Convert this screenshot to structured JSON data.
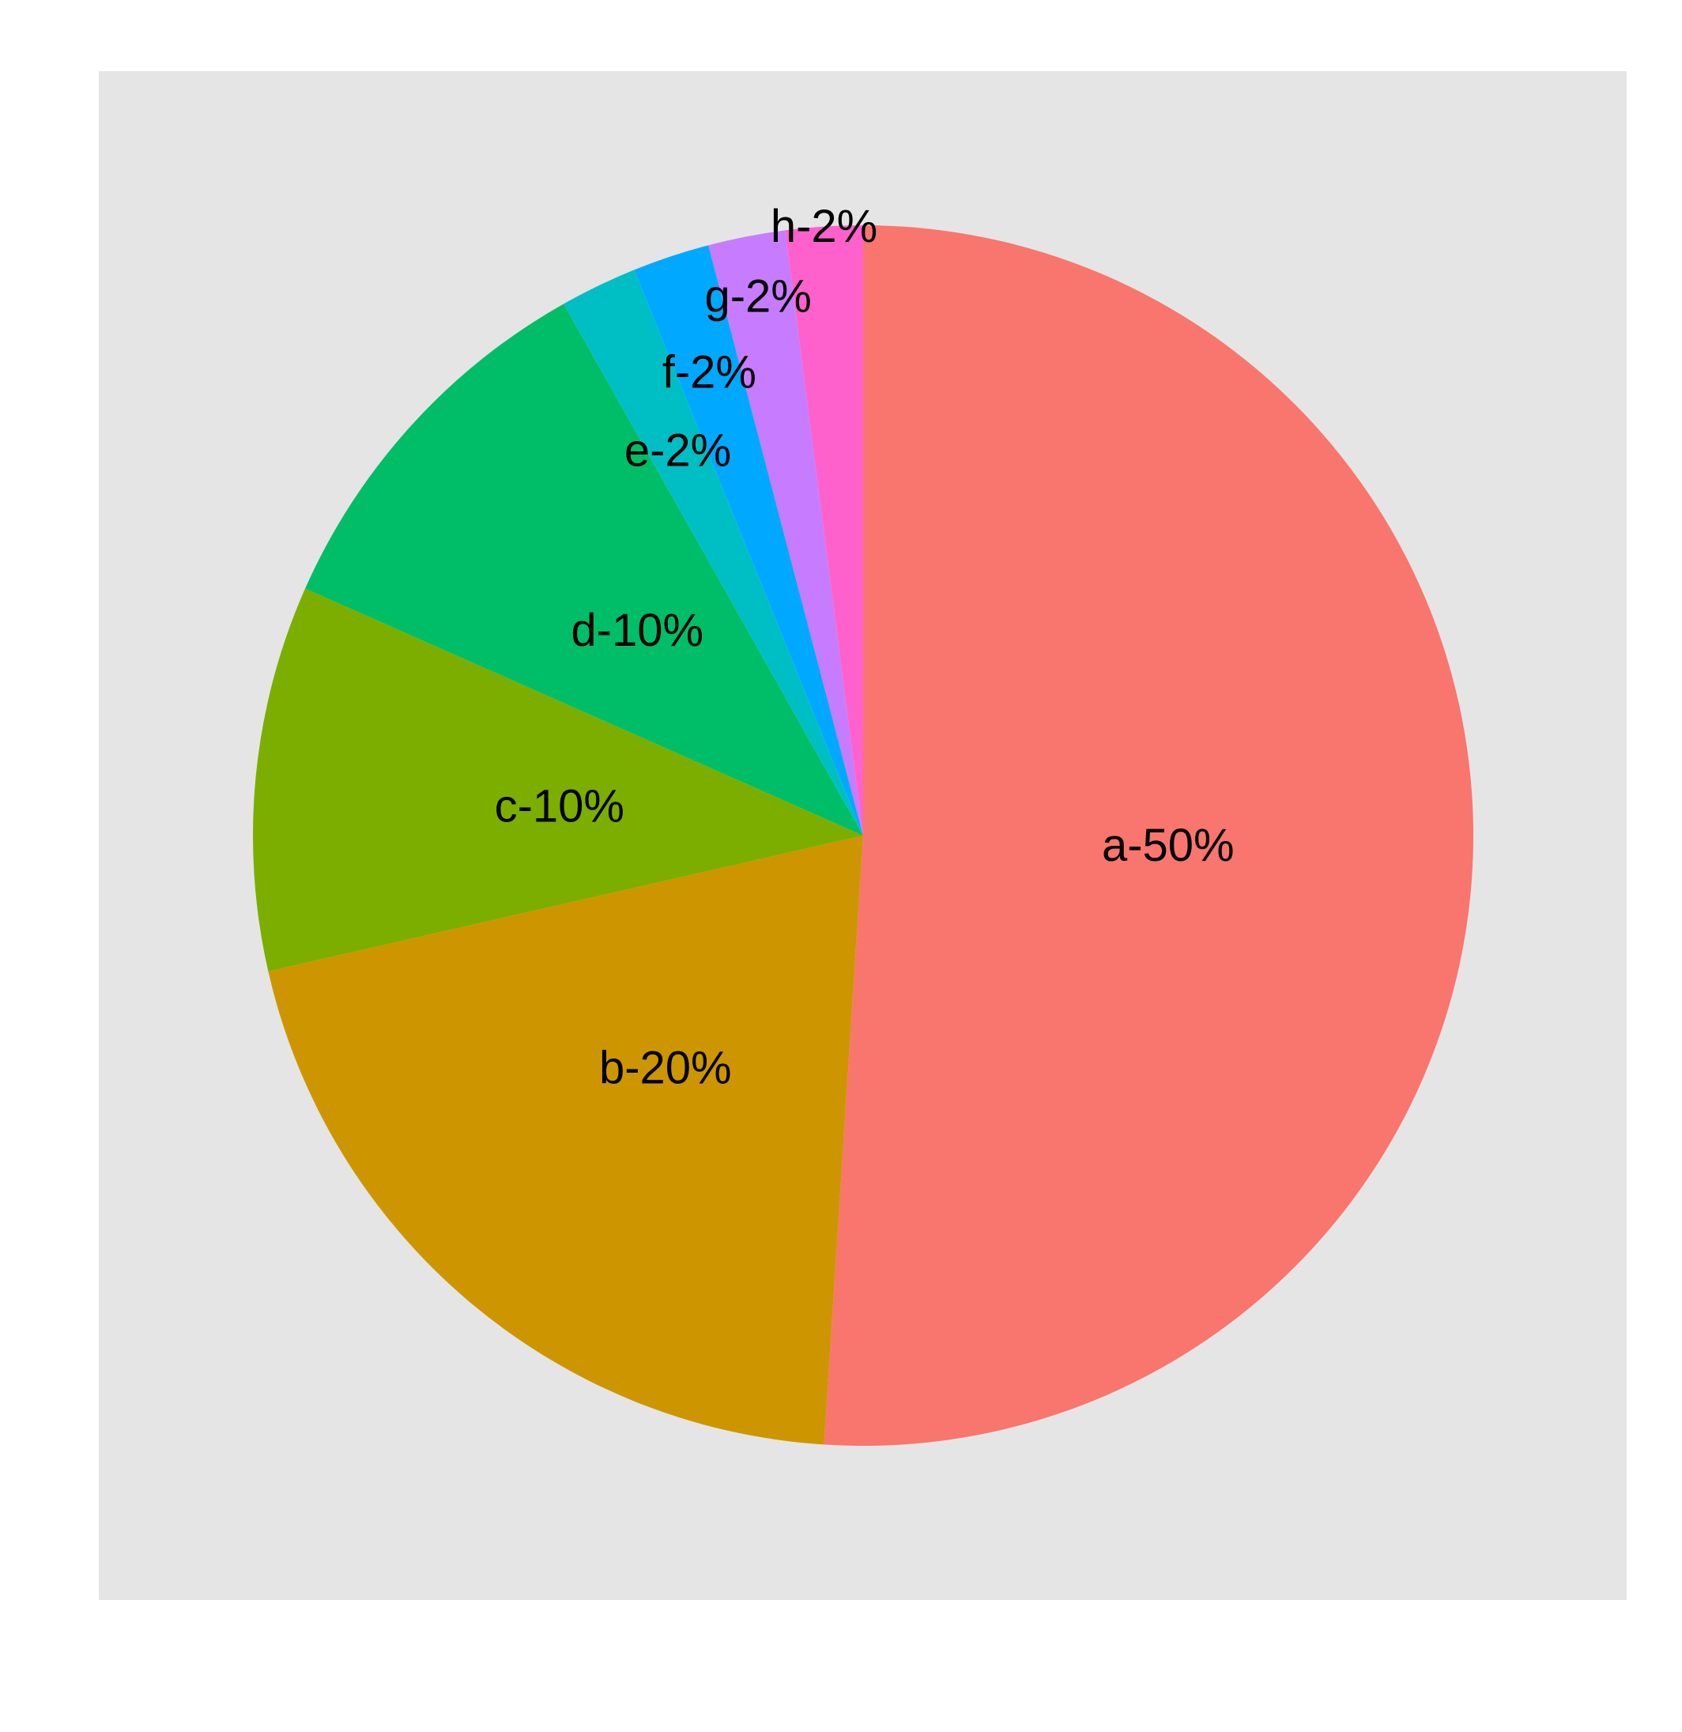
{
  "chart_data": {
    "type": "pie",
    "title": "",
    "categories": [
      "a",
      "b",
      "c",
      "d",
      "e",
      "f",
      "g",
      "h"
    ],
    "values": [
      50,
      20,
      10,
      10,
      2,
      2,
      2,
      2
    ],
    "labels": [
      "a-50%",
      "b-20%",
      "c-10%",
      "d-10%",
      "e-2%",
      "f-2%",
      "g-2%",
      "h-2%"
    ],
    "colors": [
      "#F8766D",
      "#CD9600",
      "#7CAE00",
      "#00BE67",
      "#00BFC4",
      "#00A9FF",
      "#C77CFF",
      "#FF61CC"
    ],
    "start_angle": "12 o'clock",
    "direction": "clockwise",
    "panel_background": "#E5E5E5",
    "legend": "none",
    "grid": false
  }
}
